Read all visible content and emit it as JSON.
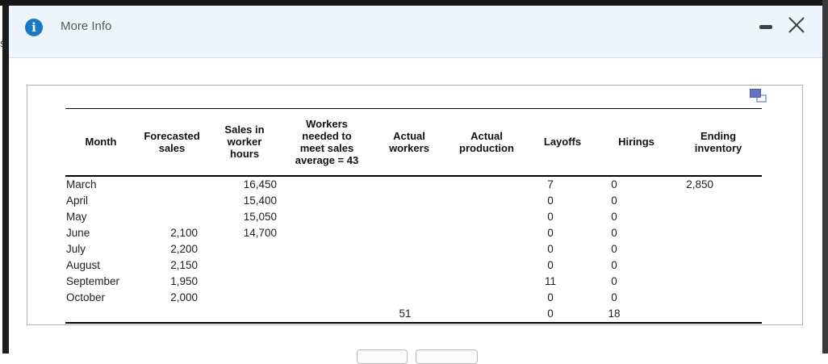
{
  "background_text_fragment": "s",
  "dialog": {
    "title": "More Info",
    "colors": {
      "info_icon_blue": "#1878c4",
      "titlebar_background": "#eef4fb",
      "copy_icon_purple": "#6474c4"
    },
    "icons": {
      "info_glyph": "i"
    }
  },
  "table": {
    "headers": [
      "Month",
      "Forecasted\nsales",
      "Sales in\nworker\nhours",
      "Workers\nneeded to\nmeet sales\naverage = 43",
      "Actual\nworkers",
      "Actual\nproduction",
      "Layoffs",
      "Hirings",
      "Ending\ninventory"
    ],
    "rows": [
      [
        "March",
        "",
        "16,450",
        "",
        "",
        "",
        "7",
        "0",
        "2,850"
      ],
      [
        "April",
        "",
        "15,400",
        "",
        "",
        "",
        "0",
        "0",
        ""
      ],
      [
        "May",
        "",
        "15,050",
        "",
        "",
        "",
        "0",
        "0",
        ""
      ],
      [
        "June",
        "2,100",
        "14,700",
        "",
        "",
        "",
        "0",
        "0",
        ""
      ],
      [
        "July",
        "2,200",
        "",
        "",
        "",
        "",
        "0",
        "0",
        ""
      ],
      [
        "August",
        "2,150",
        "",
        "",
        "",
        "",
        "0",
        "0",
        ""
      ],
      [
        "September",
        "1,950",
        "",
        "",
        "",
        "",
        "11",
        "0",
        ""
      ],
      [
        "October",
        "2,000",
        "",
        "",
        "",
        "",
        "0",
        "0",
        ""
      ],
      [
        "",
        "",
        "",
        "",
        "51",
        "",
        "0",
        "18",
        ""
      ]
    ]
  }
}
